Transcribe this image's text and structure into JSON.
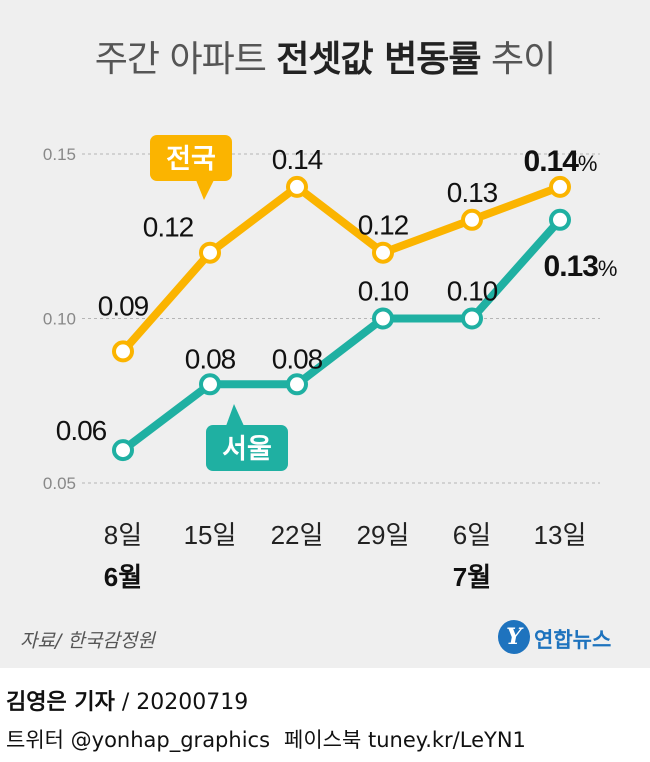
{
  "title": {
    "regular_left": "주간 아파트",
    "bold": "전셋값 변동률",
    "regular_right": "추이"
  },
  "chart_data": {
    "type": "line",
    "title": "주간 아파트 전셋값 변동률 추이",
    "categories": [
      "8일",
      "15일",
      "22일",
      "29일",
      "6일",
      "13일"
    ],
    "month_labels": [
      {
        "category_index": 0,
        "text": "6월"
      },
      {
        "category_index": 4,
        "text": "7월"
      }
    ],
    "y_ticks": [
      "0.05",
      "0.10",
      "0.15"
    ],
    "ylim": [
      0.05,
      0.15
    ],
    "grid": true,
    "series": [
      {
        "name": "전국",
        "color": "#fbb400",
        "values": [
          0.09,
          0.12,
          0.14,
          0.12,
          0.13,
          0.14
        ],
        "labels": [
          "0.09",
          "0.12",
          "0.14",
          "0.12",
          "0.13",
          "0.14"
        ],
        "last_label_unit": "%"
      },
      {
        "name": "서울",
        "color": "#1fb0a2",
        "values": [
          0.06,
          0.08,
          0.08,
          0.1,
          0.1,
          0.13
        ],
        "labels": [
          "0.06",
          "0.08",
          "0.08",
          "0.10",
          "0.10",
          "0.13"
        ],
        "last_label_unit": "%"
      }
    ]
  },
  "source": "자료/ 한국감정원",
  "logo": {
    "emblem": "Y",
    "name": "연합뉴스"
  },
  "byline": {
    "name": "김영은 기자",
    "rest": " / 20200719"
  },
  "social": {
    "twitter": "트위터 @yonhap_graphics",
    "facebook": "페이스북 tuney.kr/LeYN1"
  }
}
